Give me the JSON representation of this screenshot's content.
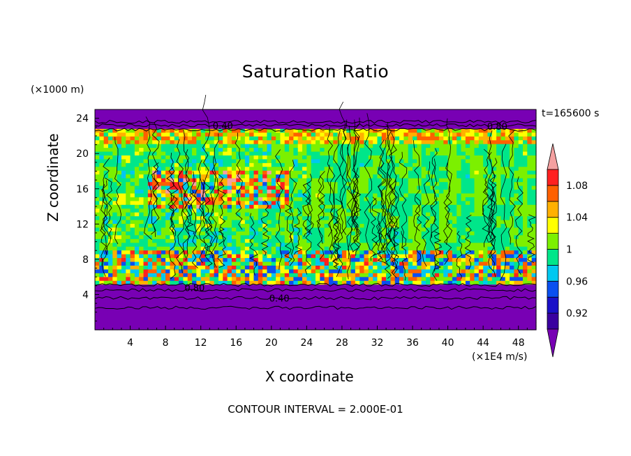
{
  "chart_data": {
    "type": "heatmap",
    "title": "Saturation Ratio",
    "xlabel": "X coordinate",
    "ylabel": "Z coordinate",
    "x_unit": "(×1E4 m/s)",
    "y_unit": "(×1000 m)",
    "time_label": "t=165600 s",
    "contour_interval": "CONTOUR INTERVAL = 2.000E-01",
    "xlim": [
      0,
      50
    ],
    "ylim": [
      0,
      25
    ],
    "x_ticks": [
      4,
      8,
      12,
      16,
      20,
      24,
      28,
      32,
      36,
      40,
      44,
      48
    ],
    "y_ticks": [
      4,
      8,
      12,
      16,
      20,
      24
    ],
    "contour_labels": [
      {
        "text": "0.40",
        "x": 14.5,
        "z": 23.2
      },
      {
        "text": "0.80",
        "x": 11.3,
        "z": 4.8
      },
      {
        "text": "0.40",
        "x": 20.9,
        "z": 3.6
      },
      {
        "text": "0.80",
        "x": 45.6,
        "z": 23.1
      }
    ],
    "colorbar": {
      "levels": [
        0.9,
        0.92,
        0.94,
        0.96,
        0.98,
        1.0,
        1.02,
        1.04,
        1.06,
        1.08,
        1.1
      ],
      "colors": [
        "#3a00a0",
        "#1a10c8",
        "#0a50f0",
        "#00c8f0",
        "#00e68a",
        "#7cf000",
        "#ffff00",
        "#ffb000",
        "#ff6000",
        "#ff2020"
      ],
      "over_color": "#f4a0a0",
      "under_color": "#7800b4",
      "labels": [
        "0.92",
        "0.96",
        "1",
        "1.04",
        "1.08"
      ]
    }
  }
}
